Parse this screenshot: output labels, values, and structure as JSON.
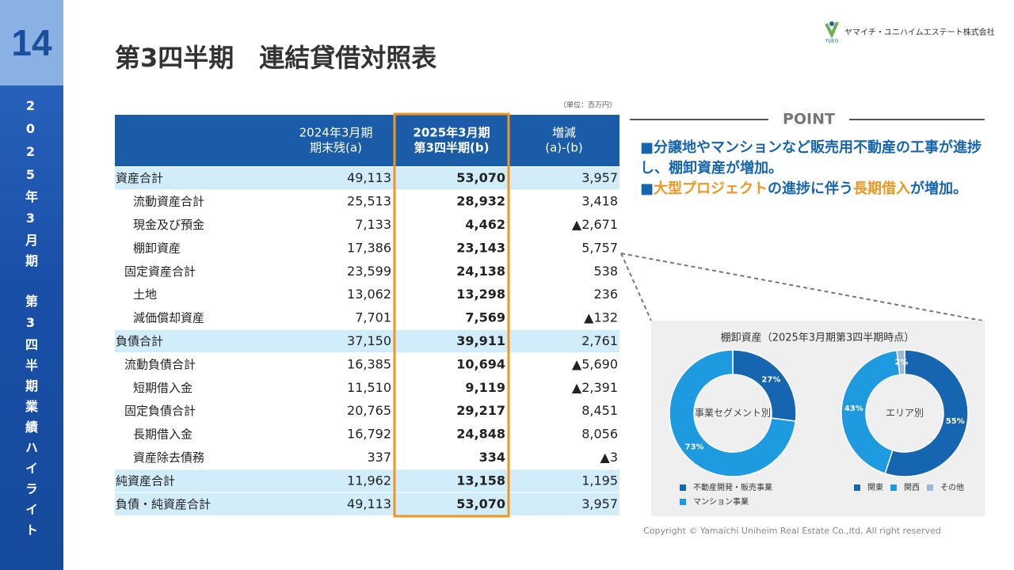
{
  "page_number": "14",
  "sidebar": [
    "2025年3月期",
    "第3四半期業績ハイライト"
  ],
  "logo": {
    "mark": "YUEG",
    "company": "ヤマイチ・ユニハイムエステート株式会社"
  },
  "title": "第3四半期　連結貸借対照表",
  "unit": "（単位：百万円）",
  "table": {
    "columns": [
      [
        "2024年3月期",
        "期末残(a)"
      ],
      [
        "2025年3月期",
        "第3四半期(b)"
      ],
      [
        "増減",
        "(a)-(b)"
      ]
    ],
    "rows": [
      {
        "label": "資産合計",
        "values": [
          "49,113",
          "53,070",
          "3,957"
        ]
      },
      {
        "label": "流動資産合計",
        "values": [
          "25,513",
          "28,932",
          "3,418"
        ]
      },
      {
        "label": "現金及び預金",
        "values": [
          "7,133",
          "4,462",
          "▲2,671"
        ]
      },
      {
        "label": "棚卸資産",
        "values": [
          "17,386",
          "23,143",
          "5,757"
        ]
      },
      {
        "label": "固定資産合計",
        "values": [
          "23,599",
          "24,138",
          "538"
        ]
      },
      {
        "label": "土地",
        "values": [
          "13,062",
          "13,298",
          "236"
        ]
      },
      {
        "label": "減価償却資産",
        "values": [
          "7,701",
          "7,569",
          "▲132"
        ]
      },
      {
        "label": "負債合計",
        "values": [
          "37,150",
          "39,911",
          "2,761"
        ]
      },
      {
        "label": "流動負債合計",
        "values": [
          "16,385",
          "10,694",
          "▲5,690"
        ]
      },
      {
        "label": "短期借入金",
        "values": [
          "11,510",
          "9,119",
          "▲2,391"
        ]
      },
      {
        "label": "固定負債合計",
        "values": [
          "20,765",
          "29,217",
          "8,451"
        ]
      },
      {
        "label": "長期借入金",
        "values": [
          "16,792",
          "24,848",
          "8,056"
        ]
      },
      {
        "label": "資産除去債務",
        "values": [
          "337",
          "334",
          "▲3"
        ]
      },
      {
        "label": "純資産合計",
        "values": [
          "11,962",
          "13,158",
          "1,195"
        ]
      },
      {
        "label": "負債・純資産合計",
        "values": [
          "49,113",
          "53,070",
          "3,957"
        ]
      }
    ]
  },
  "point": {
    "heading": "POINT",
    "items": [
      [
        {
          "text": "■分譲地やマンションなど販売用不動産の工事が進捗し、棚卸資産が増加。"
        }
      ],
      [
        {
          "text": "■"
        },
        {
          "text": "大型プロジェクト",
          "color": "#f0961e"
        },
        {
          "text": "の進捗に伴う"
        },
        {
          "text": "長期借入",
          "color": "#f0961e"
        },
        {
          "text": "が増加。"
        }
      ]
    ]
  },
  "chart_panel_title": "棚卸資産（2025年3月期第3四半期時点）",
  "chart_data": [
    {
      "type": "donut",
      "center_label": "事業セグメント別",
      "categories": [
        "不動産開発・販売事業",
        "マンション事業"
      ],
      "values": [
        27,
        73
      ],
      "value_labels": [
        "27%",
        "73%"
      ],
      "colors": [
        "#1565b0",
        "#1e9ae0"
      ],
      "legend": "vertical"
    },
    {
      "type": "donut",
      "center_label": "エリア別",
      "categories": [
        "関東",
        "関西",
        "その他"
      ],
      "values": [
        55,
        43,
        2
      ],
      "value_labels": [
        "55%",
        "43%",
        "2%"
      ],
      "colors": [
        "#1565b0",
        "#1e9ae0",
        "#9ab8dc"
      ],
      "legend": "horizontal"
    }
  ],
  "copyright": "Copyright © Yamaichi Uniheim Real Estate Co.,ltd, All right reserved"
}
